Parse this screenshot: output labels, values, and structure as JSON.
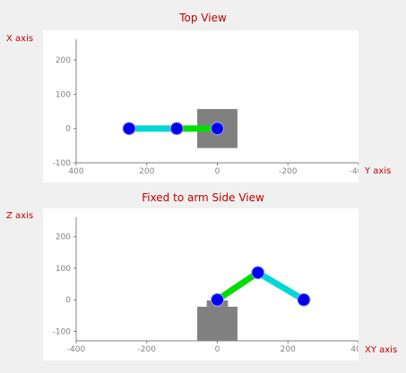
{
  "top_view": {
    "title": "Top View",
    "vertical_axis_label": "X axis",
    "horizontal_axis_label": "Y axis"
  },
  "side_view": {
    "title": "Fixed to arm Side View",
    "vertical_axis_label": "Z axis",
    "horizontal_axis_label": "XY axis"
  },
  "colors": {
    "link_1": "#00dd00",
    "link_2": "#00d6d6",
    "joint": "#0000ee",
    "base": "#808080",
    "title_text": "#c00000",
    "tick_text": "#808080"
  },
  "chart_data": [
    {
      "type": "scatter",
      "title": "Top View",
      "ylabel": "X axis",
      "xlabel": "Y axis",
      "xlim": [
        400,
        -400
      ],
      "ylim": [
        -100,
        250
      ],
      "xticks": [
        400,
        200,
        0,
        -200,
        -400
      ],
      "yticks": [
        200,
        100,
        0,
        -100
      ],
      "joints": [
        {
          "y_axis": 0,
          "x_axis": 0
        },
        {
          "y_axis": 115,
          "x_axis": 0
        },
        {
          "y_axis": 250,
          "x_axis": 0
        }
      ],
      "base": {
        "y_min": -57,
        "y_max": 57,
        "x_min": -57,
        "x_max": 57
      }
    },
    {
      "type": "scatter",
      "title": "Fixed to arm Side View",
      "ylabel": "Z axis",
      "xlabel": "XY axis",
      "xlim": [
        -400,
        400
      ],
      "ylim": [
        -130,
        250
      ],
      "xticks": [
        -400,
        -200,
        0,
        200,
        400
      ],
      "yticks": [
        200,
        100,
        0,
        -100
      ],
      "joints": [
        {
          "xy_axis": 0,
          "z_axis": 0
        },
        {
          "xy_axis": 115,
          "z_axis": 86
        },
        {
          "xy_axis": 245,
          "z_axis": 0
        }
      ],
      "base": {
        "xy_min": -57,
        "xy_max": 57,
        "z_min": -130,
        "z_max": -22
      },
      "base_top": {
        "xy_min": -30,
        "xy_max": 30,
        "z_min": -22,
        "z_max": -2
      }
    }
  ]
}
